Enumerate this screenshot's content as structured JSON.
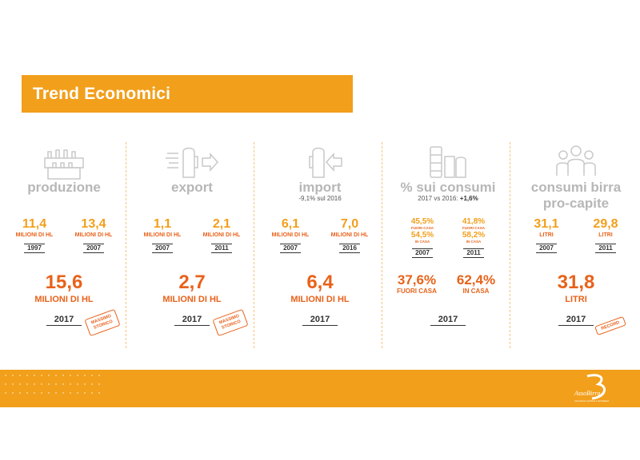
{
  "header": {
    "title": "Trend Economici"
  },
  "columns": [
    {
      "id": "produzione",
      "icon": "beer-crates-icon",
      "title": "produzione",
      "left": {
        "value": "11,4",
        "unit": "MILIONI DI HL",
        "year": "1997"
      },
      "right": {
        "value": "13,4",
        "unit": "MILIONI DI HL",
        "year": "2007"
      },
      "big": {
        "value": "15,6",
        "unit": "MILIONI DI HL",
        "year": "2017"
      },
      "badge": "MASSIMO STORICO"
    },
    {
      "id": "export",
      "icon": "beer-glass-export-arrow-icon",
      "title": "export",
      "left": {
        "value": "1,1",
        "unit": "MILIONI DI HL",
        "year": "2007"
      },
      "right": {
        "value": "2,1",
        "unit": "MILIONI DI HL",
        "year": "2011"
      },
      "big": {
        "value": "2,7",
        "unit": "MILIONI DI HL",
        "year": "2017"
      },
      "badge": "MASSIMO STORICO"
    },
    {
      "id": "import",
      "icon": "beer-glass-import-arrow-icon",
      "title": "import",
      "subtitle": "-9,1% sul 2016",
      "left": {
        "value": "6,1",
        "unit": "MILIONI DI HL",
        "year": "2007"
      },
      "right": {
        "value": "7,0",
        "unit": "MILIONI DI HL",
        "year": "2016"
      },
      "big": {
        "value": "6,4",
        "unit": "MILIONI DI HL",
        "year": "2017"
      }
    },
    {
      "id": "consumi",
      "icon": "containers-icon",
      "title": "% sui consumi",
      "subtitle_pre": "2017 vs 2016:",
      "subtitle_val": "+1,6%",
      "left": {
        "out_val": "45,5%",
        "out_lab": "FUORI CASA",
        "in_val": "54,5%",
        "in_lab": "IN CASA",
        "year": "2007"
      },
      "right": {
        "out_val": "41,8%",
        "out_lab": "FUORI CASA",
        "in_val": "58,2%",
        "in_lab": "IN CASA",
        "year": "2011"
      },
      "big_left": {
        "value": "37,6%",
        "unit": "FUORI CASA"
      },
      "big_right": {
        "value": "62,4%",
        "unit": "IN CASA"
      },
      "big_year": "2017"
    },
    {
      "id": "procapite",
      "icon": "people-icon",
      "title_line1": "consumi birra",
      "title_line2": "pro-capite",
      "left": {
        "value": "31,1",
        "unit": "LITRI",
        "year": "2007"
      },
      "right": {
        "value": "29,8",
        "unit": "LITRI",
        "year": "2011"
      },
      "big": {
        "value": "31,8",
        "unit": "LITRI",
        "year": "2017"
      },
      "badge": "RECORD"
    }
  ],
  "footer": {
    "logo_text": "AssoBirra",
    "logo_sub": "Associazione dei Birrai e dei Maltatori"
  },
  "colors": {
    "accent": "#f29f1b",
    "accent_dark": "#e8621a",
    "muted": "#b7b7b7"
  }
}
